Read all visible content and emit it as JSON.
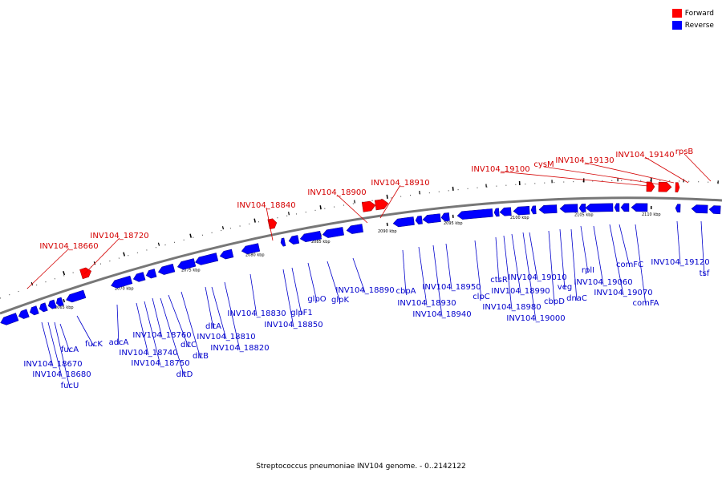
{
  "legend": {
    "forward_label": "Forward",
    "reverse_label": "Reverse",
    "forward_color": "#ff0000",
    "reverse_color": "#0000ff"
  },
  "caption": "Streptococcus pneumoniae INV104 genome. - 0..2142122",
  "scale_labels": [
    "2065 kbp",
    "2070 kbp",
    "2075 kbp",
    "2080 kbp",
    "2085 kbp",
    "2090 kbp",
    "2095 kbp",
    "2100 kbp",
    "2105 kbp",
    "2110 kbp"
  ],
  "forward_genes": [
    "INV104_18660",
    "INV104_18720",
    "INV104_18840",
    "INV104_18900",
    "INV104_18910",
    "INV104_19100",
    "cysM",
    "INV104_19130",
    "INV104_19140",
    "rpsB"
  ],
  "reverse_genes": [
    "INV104_18670",
    "INV104_18680",
    "fucU",
    "fucA",
    "fucK",
    "adcA",
    "INV104_18740",
    "INV104_18750",
    "INV104_18760",
    "dltD",
    "dltC",
    "dltB",
    "dltA",
    "INV104_18810",
    "INV104_18820",
    "INV104_18830",
    "INV104_18850",
    "glpF1",
    "glpO",
    "glpK",
    "INV104_18890",
    "cbpA",
    "INV104_18930",
    "INV104_18940",
    "INV104_18950",
    "clpC",
    "ctsR",
    "INV104_18980",
    "INV104_18990",
    "INV104_19000",
    "INV104_19010",
    "cbpD",
    "veg",
    "dnaC",
    "rplI",
    "INV104_19060",
    "INV104_19070",
    "comFC",
    "comFA",
    "INV104_19120",
    "tsf"
  ]
}
